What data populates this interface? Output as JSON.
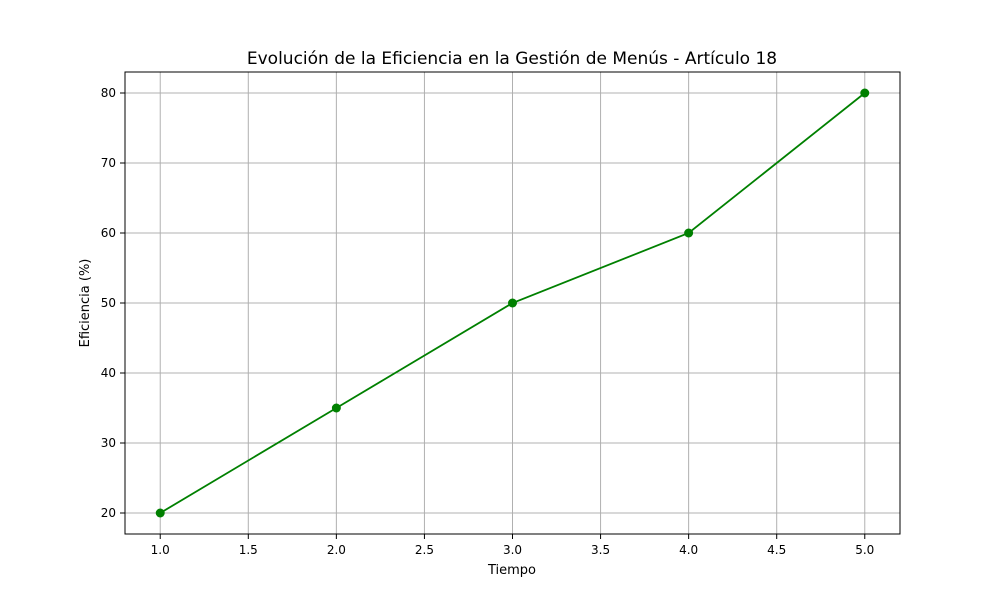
{
  "chart_data": {
    "type": "line",
    "title": "Evolución de la Eficiencia en la Gestión de Menús - Artículo 18",
    "xlabel": "Tiempo",
    "ylabel": "Eficiencia (%)",
    "x": [
      1,
      2,
      3,
      4,
      5
    ],
    "series": [
      {
        "values": [
          20,
          35,
          50,
          60,
          80
        ],
        "color": "#008000",
        "marker": "circle"
      }
    ],
    "xlim": [
      0.8,
      5.2
    ],
    "ylim": [
      17,
      83
    ],
    "xticks": [
      1.0,
      1.5,
      2.0,
      2.5,
      3.0,
      3.5,
      4.0,
      4.5,
      5.0
    ],
    "xtick_labels": [
      "1.0",
      "1.5",
      "2.0",
      "2.5",
      "3.0",
      "3.5",
      "4.0",
      "4.5",
      "5.0"
    ],
    "yticks": [
      20,
      30,
      40,
      50,
      60,
      70,
      80
    ],
    "ytick_labels": [
      "20",
      "30",
      "40",
      "50",
      "60",
      "70",
      "80"
    ],
    "grid": true,
    "grid_color": "#b0b0b0"
  }
}
